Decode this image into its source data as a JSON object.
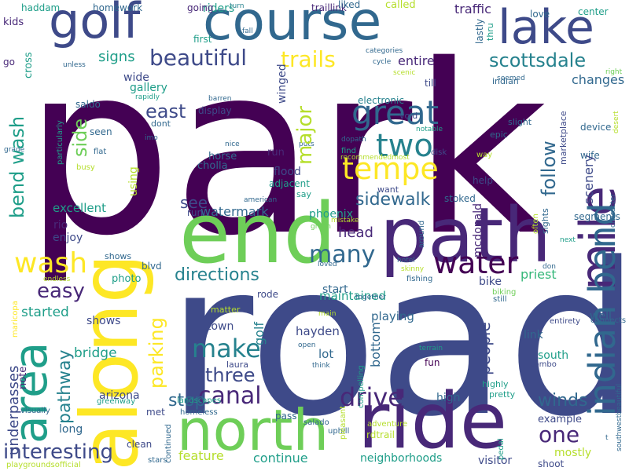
{
  "words": {
    "park": "park",
    "road": "road",
    "ride": "ride",
    "path": "path",
    "along": "along",
    "end": "end",
    "north": "north",
    "area": "area",
    "golf": "golf",
    "course": "course",
    "lake": "lake",
    "mile": "mile",
    "indian": "indian",
    "bend": "bend",
    "wash": "wash",
    "great": "great",
    "two": "two",
    "tempe": "tempe",
    "water": "water",
    "beautiful": "beautiful",
    "trails": "trails",
    "scottsdale": "scottsdale",
    "interesting": "interesting",
    "canal": "canal",
    "drive": "drive",
    "make": "make",
    "three": "three",
    "easy": "easy",
    "directions": "directions",
    "many": "many",
    "major": "major",
    "side": "side",
    "parking": "parking",
    "one": "one",
    "sidewalk": "sidewalk",
    "east": "east",
    "follow": "follow",
    "winds": "winds",
    "stop": "stop",
    "bend_wash": "bend wash",
    "pathway": "pathway",
    "people": "people",
    "traffic": "traffic",
    "signs": "signs",
    "entire": "entire",
    "changes": "changes",
    "scenery": "scenery",
    "watermark": "watermark",
    "see": "see",
    "excellent": "excellent",
    "phoenix": "phoenix",
    "head": "head",
    "mcdonald": "mcdonald",
    "priest": "priest",
    "started": "started",
    "bridge": "bridge",
    "arizona": "arizona",
    "long": "long",
    "feature": "feature",
    "continue": "continue",
    "neighborhoods": "neighborhoods",
    "visitor": "visitor",
    "mostly": "mostly",
    "shoot": "shoot",
    "example": "example",
    "south": "south",
    "link": "link",
    "well": "well",
    "playing": "playing",
    "hayden": "hayden",
    "lot": "lot",
    "town": "town",
    "high": "high",
    "pass": "pass",
    "fun": "fun",
    "bottom": "bottom",
    "golf_small": "golf",
    "maintained": "maintained",
    "start": "start",
    "bike": "bike",
    "flood": "flood",
    "adjacent": "adjacent",
    "using": "using",
    "run": "run",
    "rio": "rio",
    "enjoy": "enjoy",
    "wide": "wide",
    "gallery": "gallery",
    "going": "going",
    "riders": "riders",
    "first": "first",
    "kids": "kids",
    "haddam": "haddam",
    "homework": "homework",
    "traillink": "traillink",
    "liked": "liked",
    "called": "called",
    "center": "center",
    "love": "love",
    "cross": "cross",
    "go": "go",
    "wife": "wife",
    "device": "device",
    "segments": "segments",
    "saldo": "saldo",
    "seen": "seen",
    "display": "display",
    "horse": "horse",
    "cholla": "cholla",
    "help": "help",
    "stoked": "stoked",
    "say": "say",
    "want": "want",
    "electronic": "electronic",
    "till": "till",
    "voip": "void",
    "winged": "winged",
    "note": "note",
    "underpasses": "underpasses",
    "met": "met",
    "clean": "clean",
    "shows": "shows",
    "blvd": "blvd",
    "photo": "photo",
    "rode": "rode",
    "laura": "laura",
    "rdtrail": "rdtrail",
    "highly": "highly",
    "pretty": "pretty",
    "combo": "combo",
    "epic": "epic",
    "slight": "slight",
    "still": "still",
    "biking": "biking",
    "maricopa": "maricopa",
    "greenway": "greenway",
    "visually": "visually",
    "landscapes": "landscapes",
    "homeless": "homeless",
    "salado": "salado",
    "uphill": "uphill",
    "pleasant": "pleasant",
    "adventure": "adventure",
    "continued": "continued",
    "stars": "stars",
    "playgroundsofficial": "playgroundsofficial",
    "southwestbeautiful": "southwestbeautiful",
    "connects": "connects",
    "entirety": "entirety",
    "character": "character",
    "desert": "desert",
    "right": "right",
    "seemed": "seemed",
    "unless": "unless",
    "cycle": "cycle",
    "scenic": "scenic",
    "categories": "categories",
    "rapidly": "rapidly",
    "barren": "barren",
    "nice": "nice",
    "imo": "imo",
    "dont": "dont",
    "flat": "flat",
    "busy": "busy",
    "grade": "grade",
    "particularly": "particularly",
    "american": "american",
    "green": "green",
    "mistake": "mistake",
    "around": "around",
    "hotel": "hotel",
    "skinny": "skinny",
    "fishing": "fishing",
    "loved": "loved",
    "don": "don",
    "next": "next",
    "often": "often",
    "sights": "sights",
    "way": "way",
    "disk": "disk",
    "find": "find",
    "recommendedmost": "recommendedmost",
    "dopath": "dopath",
    "puts": "puts",
    "notable": "notable",
    "marketplace": "marketplace",
    "lastly": "lastly",
    "thru": "thru",
    "indian_small": "indian",
    "turn": "turn",
    "fall": "fall",
    "together": "together",
    "main": "main",
    "open": "open",
    "think": "think",
    "compelling": "compelling",
    "terrain": "terrain",
    "matter": "matter",
    "endless": "endless",
    "t": "t"
  }
}
